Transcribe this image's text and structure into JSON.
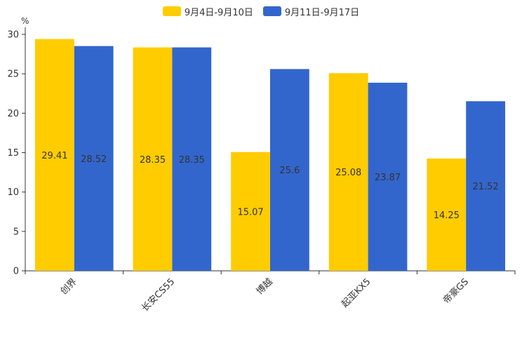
{
  "chart_data": {
    "type": "bar",
    "title": "",
    "xlabel": "",
    "ylabel": "%",
    "ylim": [
      0,
      30
    ],
    "yticks": [
      0,
      5,
      10,
      15,
      20,
      25,
      30
    ],
    "categories": [
      "创界",
      "长安CS55",
      "博越",
      "起亚KX5",
      "帝豪GS"
    ],
    "series": [
      {
        "name": "9月4日-9月10日",
        "color": "#FFCC00",
        "values": [
          29.41,
          28.35,
          15.07,
          25.08,
          14.25
        ]
      },
      {
        "name": "9月11日-9月17日",
        "color": "#3366CC",
        "values": [
          28.52,
          28.35,
          25.6,
          23.87,
          21.52
        ]
      }
    ],
    "legend_position": "top-center"
  }
}
